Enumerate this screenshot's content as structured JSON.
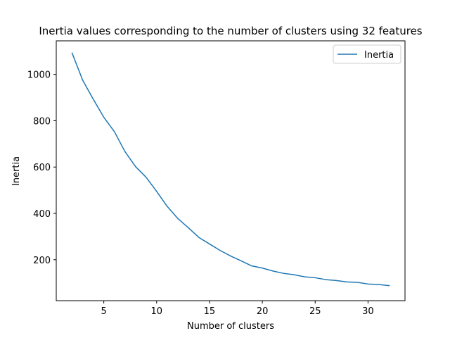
{
  "chart_data": {
    "type": "line",
    "title": "Inertia values corresponding to the number of clusters using 32 features",
    "xlabel": "Number of clusters",
    "ylabel": "Inertia",
    "xlim": [
      0.5,
      33.5
    ],
    "ylim": [
      23,
      1145
    ],
    "xticks": [
      5,
      10,
      15,
      20,
      25,
      30
    ],
    "yticks": [
      200,
      400,
      600,
      800,
      1000
    ],
    "grid": false,
    "legend_position": "top-right",
    "series": [
      {
        "name": "Inertia",
        "color": "#1f77b4",
        "x": [
          2,
          3,
          4,
          5,
          6,
          7,
          8,
          9,
          10,
          11,
          12,
          13,
          14,
          15,
          16,
          17,
          18,
          19,
          20,
          21,
          22,
          23,
          24,
          25,
          26,
          27,
          28,
          29,
          30,
          31,
          32
        ],
        "y": [
          1092,
          975,
          893,
          815,
          753,
          667,
          602,
          556,
          495,
          430,
          378,
          338,
          296,
          268,
          240,
          216,
          195,
          173,
          164,
          151,
          141,
          135,
          126,
          122,
          114,
          110,
          104,
          102,
          95,
          93,
          88
        ]
      }
    ]
  }
}
